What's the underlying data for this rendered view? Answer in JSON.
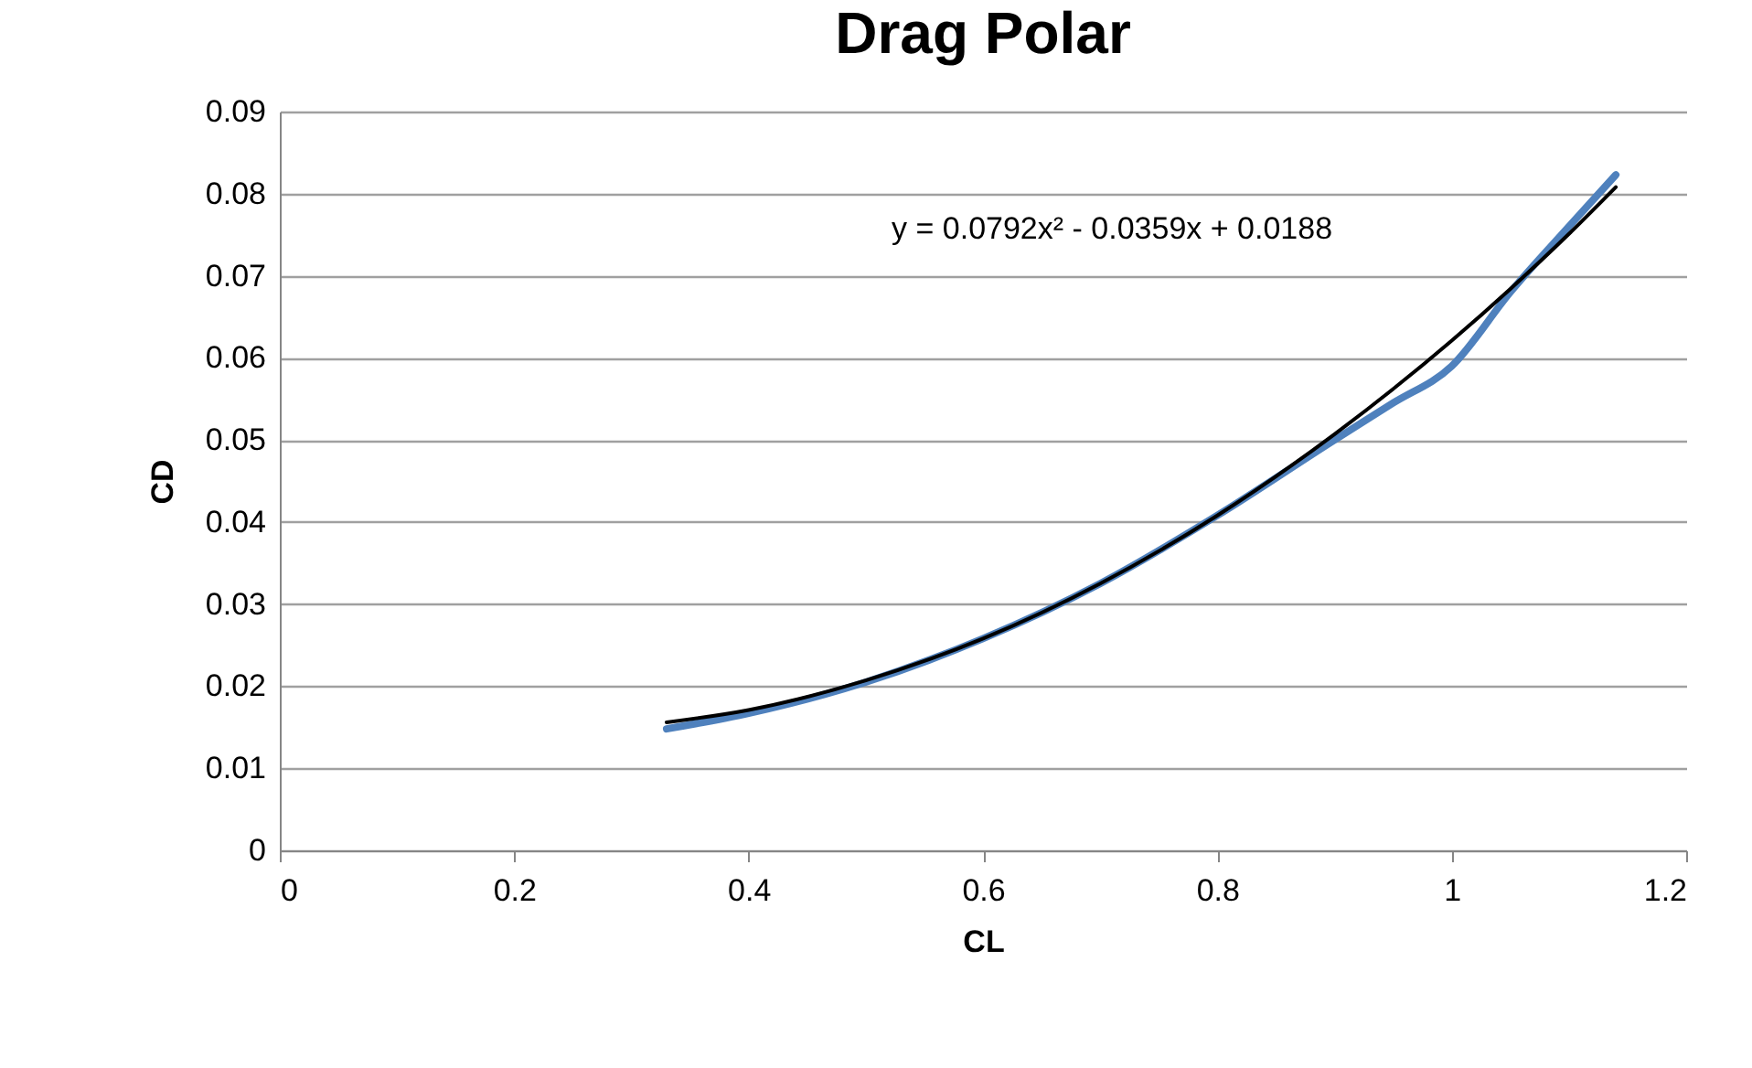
{
  "chart_data": {
    "type": "line",
    "title": "Drag Polar",
    "xlabel": "CL",
    "ylabel": "CD",
    "annotations": [
      "y = 0.0792x² - 0.0359x + 0.0188"
    ],
    "xlim": [
      0,
      1.2
    ],
    "xticks": [
      0,
      0.2,
      0.4,
      0.6,
      0.8,
      1,
      1.2
    ],
    "ylim": [
      0,
      0.09
    ],
    "yticks": [
      0,
      0.01,
      0.02,
      0.03,
      0.04,
      0.05,
      0.06,
      0.07,
      0.08,
      0.09
    ],
    "grid": "y",
    "marker": "none",
    "line_style": "solid",
    "series": [
      {
        "color": "#4f81bd",
        "x": [
          0.33,
          0.4,
          0.5,
          0.6,
          0.7,
          0.8,
          0.9,
          0.95,
          1.0,
          1.05,
          1.1,
          1.14
        ],
        "values": [
          0.0148,
          0.0167,
          0.0205,
          0.0258,
          0.0325,
          0.0408,
          0.05,
          0.0545,
          0.059,
          0.068,
          0.076,
          0.0823
        ]
      },
      {
        "type": "line",
        "color": "#000000",
        "x": [
          0.33,
          0.4,
          0.5,
          0.6,
          0.7,
          0.8,
          0.9,
          1.0,
          1.05,
          1.1,
          1.14
        ],
        "values": [
          0.0156,
          0.0171,
          0.0207,
          0.0258,
          0.0325,
          0.0408,
          0.0507,
          0.0621,
          0.0684,
          0.0751,
          0.0808
        ]
      }
    ]
  }
}
